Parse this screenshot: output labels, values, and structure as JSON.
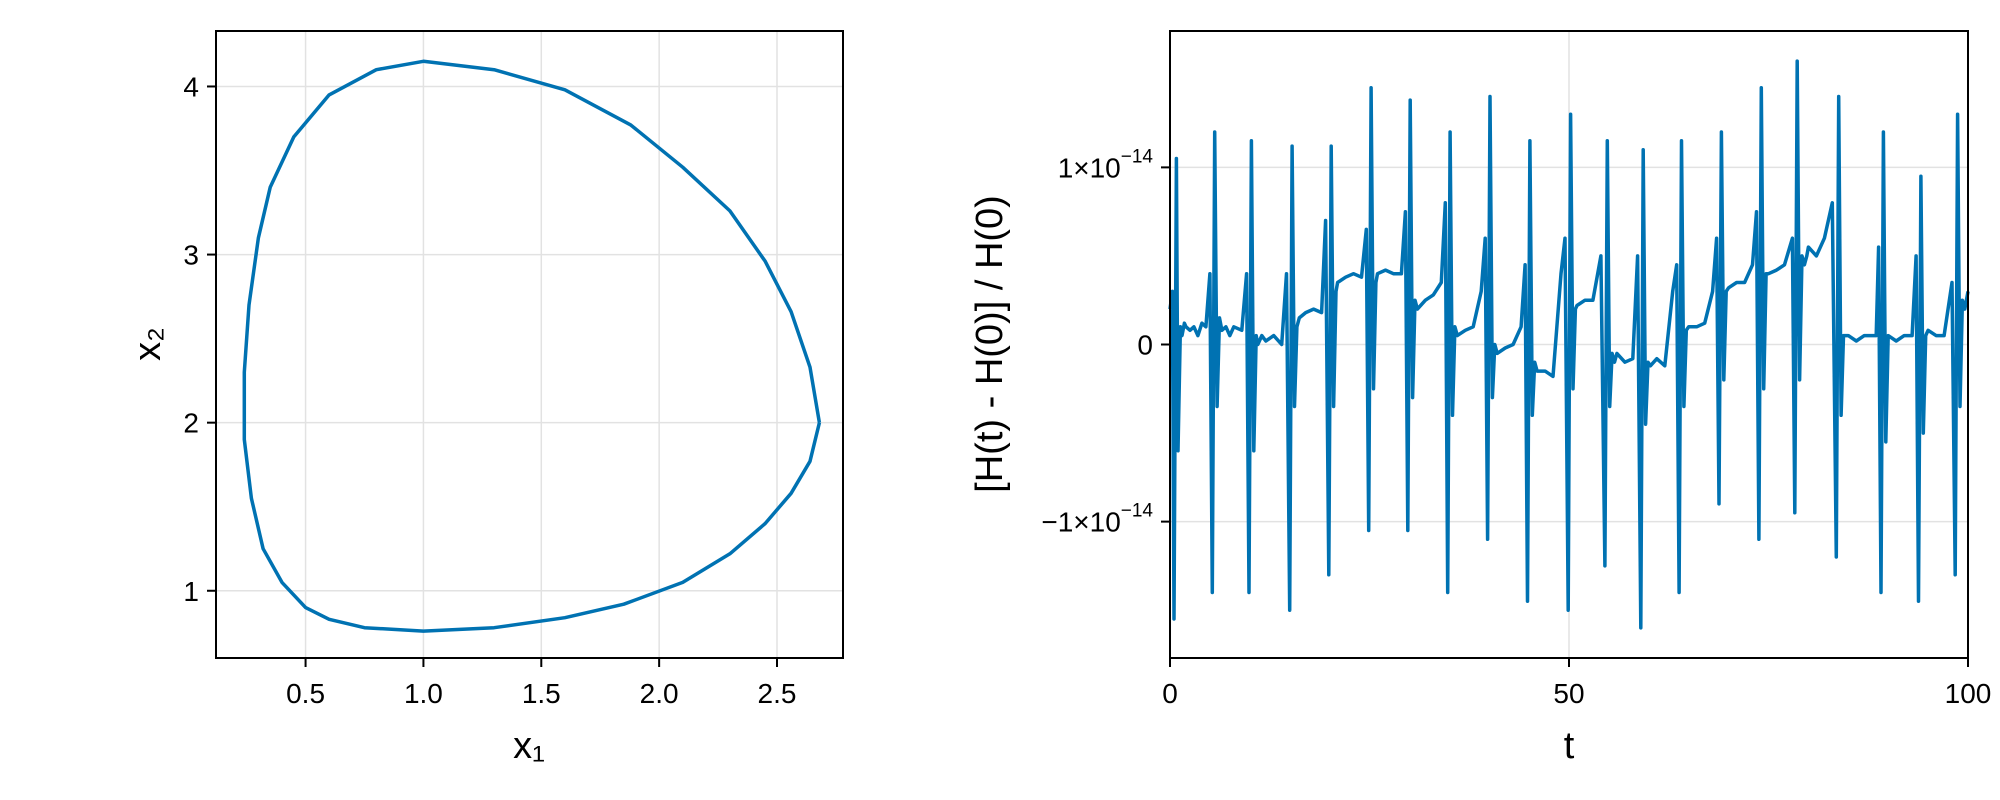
{
  "chart_data": [
    {
      "type": "line",
      "title": "",
      "xlabel": "x₁",
      "ylabel": "x₂",
      "xlim": [
        0.12,
        2.78
      ],
      "ylim": [
        0.6,
        4.33
      ],
      "xticks": [
        0.5,
        1.0,
        1.5,
        2.0,
        2.5
      ],
      "xtick_labels": [
        "0.5",
        "1.0",
        "1.5",
        "2.0",
        "2.5"
      ],
      "yticks": [
        1,
        2,
        3,
        4
      ],
      "ytick_labels": [
        "1",
        "2",
        "3",
        "4"
      ],
      "grid": true,
      "color": "#0072B2",
      "series": [
        {
          "x": [
            2.68,
            2.64,
            2.56,
            2.45,
            2.3,
            2.1,
            1.88,
            1.6,
            1.3,
            1.0,
            0.8,
            0.6,
            0.45,
            0.35,
            0.3,
            0.26,
            0.24,
            0.24,
            0.27,
            0.32,
            0.4,
            0.5,
            0.6,
            0.75,
            1.0,
            1.3,
            1.6,
            1.85,
            2.1,
            2.3,
            2.45,
            2.56,
            2.64,
            2.68
          ],
          "y": [
            2.0,
            2.33,
            2.66,
            2.96,
            3.26,
            3.52,
            3.77,
            3.98,
            4.1,
            4.15,
            4.1,
            3.95,
            3.7,
            3.4,
            3.1,
            2.7,
            2.3,
            1.9,
            1.55,
            1.25,
            1.05,
            0.9,
            0.83,
            0.78,
            0.76,
            0.78,
            0.84,
            0.92,
            1.05,
            1.22,
            1.4,
            1.58,
            1.77,
            2.0
          ]
        }
      ]
    },
    {
      "type": "line",
      "title": "",
      "xlabel": "t",
      "ylabel": "[H(t) - H(0)] / H(0)",
      "xlim": [
        0,
        100
      ],
      "ylim": [
        -1.77e-14,
        1.77e-14
      ],
      "xticks": [
        0,
        50,
        100
      ],
      "xtick_labels": [
        "0",
        "50",
        "100"
      ],
      "yticks": [
        1e-14,
        0,
        -1e-14
      ],
      "ytick_labels": [
        {
          "base": "1×10",
          "exp": "−14"
        },
        {
          "base": "0",
          "exp": ""
        },
        {
          "base": "−1×10",
          "exp": "−14"
        }
      ],
      "grid": true,
      "color": "#0072B2",
      "series": [
        {
          "x": [
            0,
            0.3,
            0.5,
            0.8,
            1.0,
            1.3,
            1.5,
            1.8,
            2.0,
            2.5,
            3.0,
            3.5,
            4.0,
            4.5,
            5.0,
            5.3,
            5.6,
            5.9,
            6.2,
            6.5,
            7.0,
            7.5,
            8.0,
            9.0,
            9.6,
            9.9,
            10.2,
            10.5,
            10.8,
            11.0,
            11.5,
            12.0,
            13.0,
            14.0,
            14.6,
            15.0,
            15.3,
            15.6,
            15.9,
            16.2,
            17.0,
            18.0,
            19.0,
            19.5,
            19.9,
            20.2,
            20.5,
            20.8,
            21.0,
            22.0,
            23.0,
            24.0,
            24.6,
            24.9,
            25.2,
            25.5,
            25.8,
            26.0,
            27.0,
            28.0,
            29.0,
            29.5,
            29.8,
            30.1,
            30.4,
            30.7,
            31.0,
            32.0,
            33.0,
            34.0,
            34.5,
            34.8,
            35.1,
            35.4,
            35.7,
            36.0,
            37.0,
            38.0,
            39.0,
            39.5,
            39.8,
            40.1,
            40.4,
            40.7,
            41.0,
            42.0,
            43.0,
            44.0,
            44.5,
            44.8,
            45.1,
            45.4,
            45.7,
            46.0,
            47.0,
            48.0,
            49.0,
            49.5,
            49.9,
            50.2,
            50.5,
            50.8,
            51.0,
            52.0,
            53.0,
            54.0,
            54.5,
            54.8,
            55.1,
            55.4,
            55.7,
            56.0,
            57.0,
            58.0,
            58.6,
            59.0,
            59.3,
            59.6,
            59.9,
            60.2,
            61.0,
            62.0,
            63.0,
            63.5,
            63.8,
            64.1,
            64.4,
            64.7,
            65.0,
            66.0,
            67.0,
            68.0,
            68.5,
            68.8,
            69.1,
            69.4,
            69.7,
            70.0,
            71.0,
            72.0,
            73.0,
            73.5,
            73.8,
            74.1,
            74.4,
            74.7,
            75.0,
            76.0,
            77.0,
            78.0,
            78.3,
            78.6,
            78.9,
            79.2,
            79.5,
            79.8,
            80.0,
            81.0,
            82.0,
            83.0,
            83.5,
            83.8,
            84.1,
            84.4,
            84.7,
            85.0,
            86.0,
            87.0,
            88.0,
            88.5,
            88.8,
            89.1,
            89.4,
            89.7,
            90.0,
            91.0,
            92.0,
            93.0,
            93.5,
            93.8,
            94.1,
            94.4,
            94.7,
            95.0,
            96.0,
            97.0,
            98.0,
            98.4,
            98.7,
            99.0,
            99.3,
            99.6,
            100.0
          ],
          "y": [
            2e-15,
            3e-15,
            -1.55e-14,
            1.05e-14,
            -6e-15,
            1e-15,
            5e-16,
            1.2e-15,
            1e-15,
            8e-16,
            1e-15,
            5e-16,
            1.2e-15,
            1e-15,
            4e-15,
            -1.4e-14,
            1.2e-14,
            -3.5e-15,
            1.5e-15,
            8e-16,
            1e-15,
            5e-16,
            1e-15,
            8e-16,
            4e-15,
            -1.4e-14,
            1.15e-14,
            -6e-15,
            5e-16,
            0.0,
            5e-16,
            2e-16,
            5e-16,
            0.0,
            4e-15,
            -1.5e-14,
            1.12e-14,
            -3.5e-15,
            1e-15,
            1.5e-15,
            1.8e-15,
            2e-15,
            1.8e-15,
            7e-15,
            -1.3e-14,
            1.12e-14,
            -3.5e-15,
            3e-15,
            3.5e-15,
            3.8e-15,
            4e-15,
            3.8e-15,
            6.5e-15,
            -1.05e-14,
            1.45e-14,
            -2.5e-15,
            3.5e-15,
            4e-15,
            4.2e-15,
            4e-15,
            4e-15,
            7.5e-15,
            -1.05e-14,
            1.38e-14,
            -3e-15,
            2.5e-15,
            2e-15,
            2.5e-15,
            2.8e-15,
            3.5e-15,
            8e-15,
            -1.4e-14,
            1.2e-14,
            -4e-15,
            1e-15,
            5e-16,
            8e-16,
            1e-15,
            3e-15,
            6e-15,
            -1.1e-14,
            1.4e-14,
            -3e-15,
            0.0,
            -5e-16,
            -2e-16,
            0.0,
            1e-15,
            4.5e-15,
            -1.45e-14,
            1.15e-14,
            -4e-15,
            -1e-15,
            -1.5e-15,
            -1.5e-15,
            -1.8e-15,
            4e-15,
            6e-15,
            -1.5e-14,
            1.3e-14,
            -2.5e-15,
            2e-15,
            2.2e-15,
            2.5e-15,
            2.5e-15,
            5e-15,
            -1.25e-14,
            1.15e-14,
            -3.5e-15,
            -5e-16,
            -1e-15,
            -5e-16,
            -1e-15,
            -8e-16,
            5e-15,
            -1.6e-14,
            1.1e-14,
            -4.5e-15,
            -1e-15,
            -1.2e-15,
            -8e-16,
            -1.2e-15,
            3e-15,
            4.5e-15,
            -1.4e-14,
            1.15e-14,
            -3.5e-15,
            8e-16,
            1e-15,
            1e-15,
            1.2e-15,
            3e-15,
            6e-15,
            -9e-15,
            1.2e-14,
            -2e-15,
            3e-15,
            3.2e-15,
            3.5e-15,
            3.5e-15,
            4.5e-15,
            7.5e-15,
            -1.1e-14,
            1.45e-14,
            -2.5e-15,
            4e-15,
            4e-15,
            4.2e-15,
            4.5e-15,
            6e-15,
            -9.5e-15,
            1.6e-14,
            -2e-15,
            5e-15,
            4.5e-15,
            5e-15,
            5.5e-15,
            5e-15,
            6e-15,
            8e-15,
            -1.2e-14,
            1.4e-14,
            -4e-15,
            5e-16,
            5e-16,
            5e-16,
            2e-16,
            5e-16,
            5e-16,
            5e-16,
            5.5e-15,
            -1.4e-14,
            1.2e-14,
            -5.5e-15,
            5e-16,
            2e-16,
            5e-16,
            5e-16,
            5e-15,
            -1.45e-14,
            9.5e-15,
            -5e-15,
            5e-16,
            8e-16,
            5e-16,
            5e-16,
            3.5e-15,
            -1.3e-14,
            1.3e-14,
            -3.5e-15,
            2.5e-15,
            2e-15,
            3e-15
          ]
        }
      ]
    }
  ]
}
